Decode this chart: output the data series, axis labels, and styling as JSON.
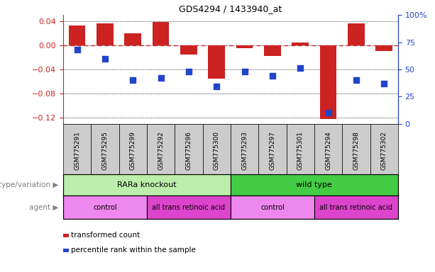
{
  "title": "GDS4294 / 1433940_at",
  "samples": [
    "GSM775291",
    "GSM775295",
    "GSM775299",
    "GSM775292",
    "GSM775296",
    "GSM775300",
    "GSM775293",
    "GSM775297",
    "GSM775301",
    "GSM775294",
    "GSM775298",
    "GSM775302"
  ],
  "bar_values": [
    0.033,
    0.036,
    0.02,
    0.038,
    -0.015,
    -0.055,
    -0.005,
    -0.018,
    0.005,
    -0.122,
    0.036,
    -0.01
  ],
  "dot_pct": [
    68,
    60,
    40,
    42,
    48,
    34,
    48,
    44,
    51,
    10,
    40,
    37
  ],
  "bar_color": "#cc2222",
  "dot_color": "#2244cc",
  "dashed_line_color": "#cc2222",
  "left_ylim": [
    -0.13,
    0.05
  ],
  "right_ylim": [
    0,
    100
  ],
  "left_yticks": [
    -0.12,
    -0.08,
    -0.04,
    0.0,
    0.04
  ],
  "right_yticks": [
    0,
    25,
    50,
    75,
    100
  ],
  "right_yticklabels": [
    "0",
    "25",
    "50",
    "75",
    "100%"
  ],
  "genotype_groups": [
    {
      "label": "RARa knockout",
      "start": 0,
      "end": 6,
      "color": "#bbeeaa"
    },
    {
      "label": "wild type",
      "start": 6,
      "end": 12,
      "color": "#44cc44"
    }
  ],
  "agent_groups": [
    {
      "label": "control",
      "start": 0,
      "end": 3,
      "color": "#ee88ee"
    },
    {
      "label": "all trans retinoic acid",
      "start": 3,
      "end": 6,
      "color": "#dd44cc"
    },
    {
      "label": "control",
      "start": 6,
      "end": 9,
      "color": "#ee88ee"
    },
    {
      "label": "all trans retinoic acid",
      "start": 9,
      "end": 12,
      "color": "#dd44cc"
    }
  ],
  "legend_items": [
    {
      "label": "transformed count",
      "color": "#cc2222"
    },
    {
      "label": "percentile rank within the sample",
      "color": "#2244cc"
    }
  ],
  "genotype_label": "genotype/variation",
  "agent_label": "agent",
  "sample_box_color": "#cccccc",
  "bar_width": 0.6,
  "dot_size": 30
}
